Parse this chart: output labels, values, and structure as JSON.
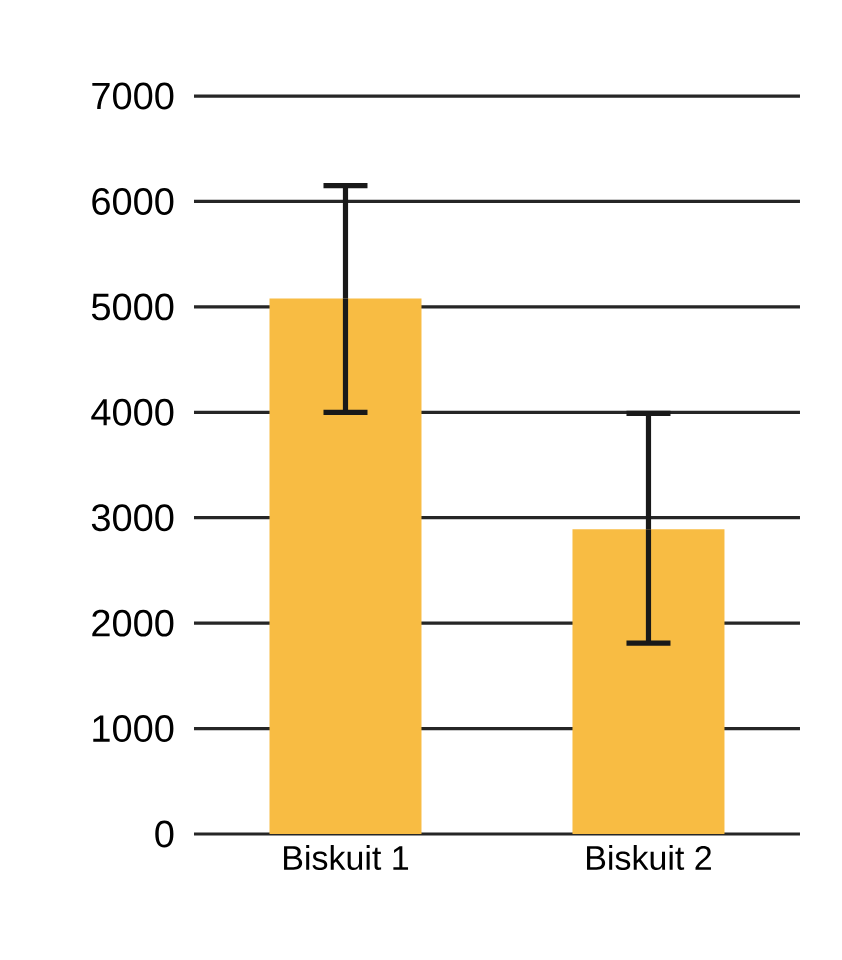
{
  "chart_data": {
    "type": "bar",
    "categories": [
      "Biskuit 1",
      "Biskuit 2"
    ],
    "values": [
      5080,
      2890
    ],
    "color": "#f8bc43",
    "errors": [
      [
        4000,
        6150
      ],
      [
        1810,
        3990
      ]
    ],
    "ylim": [
      0,
      7000
    ],
    "yticks": [
      0,
      1000,
      2000,
      3000,
      4000,
      5000,
      6000,
      7000
    ],
    "grid": "y"
  }
}
